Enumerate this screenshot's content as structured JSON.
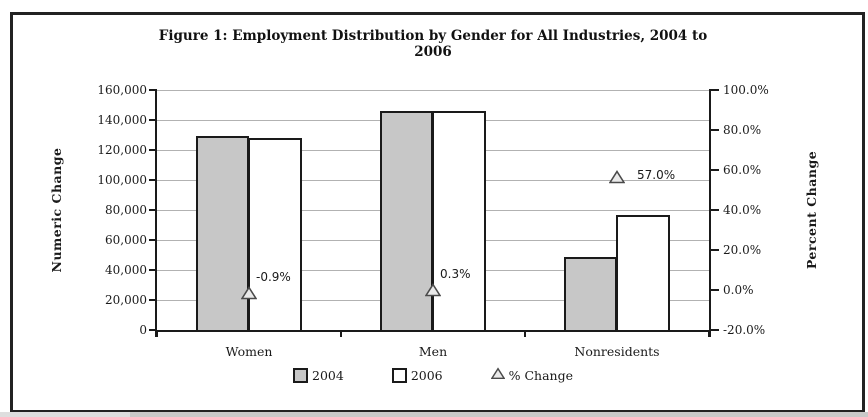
{
  "chart_data": {
    "type": "bar",
    "title": "Figure 1: Employment Distribution by Gender for All Industries, 2004 to 2006",
    "categories": [
      "Women",
      "Men",
      "Nonresidents"
    ],
    "series": [
      {
        "name": "2004",
        "axis": "left",
        "values": [
          129400,
          145700,
          49000
        ]
      },
      {
        "name": "2006",
        "axis": "left",
        "values": [
          128200,
          146100,
          76900
        ]
      }
    ],
    "markers": {
      "name": "% Change",
      "axis": "right",
      "values": [
        -0.9,
        0.3,
        57.0
      ],
      "labels": [
        "-0.9%",
        "0.3%",
        "57.0%"
      ]
    },
    "left_axis": {
      "label": "Numeric Change",
      "min": 0,
      "max": 160000,
      "step": 20000,
      "tick_labels_bottom_to_top": [
        "0",
        "20,000",
        "40,000",
        "60,000",
        "80,000",
        "100,000",
        "120,000",
        "140,000",
        "160,000"
      ]
    },
    "right_axis": {
      "label": "Percent Change",
      "min": -20,
      "max": 100,
      "step": 20,
      "tick_labels_bottom_to_top": [
        "-20.0%",
        "0.0%",
        "20.0%",
        "40.0%",
        "60.0%",
        "80.0%",
        "100.0%"
      ]
    },
    "legend": [
      {
        "label": "2004",
        "marker": "square-gray"
      },
      {
        "label": "2006",
        "marker": "square-white"
      },
      {
        "label": "% Change",
        "marker": "triangle"
      }
    ],
    "grid": "horizontal",
    "legend_position": "bottom",
    "colors": {
      "bar_2004_fill": "#c7c7c7",
      "bar_2006_fill": "#ffffff",
      "bar_border": "#1a1a1a",
      "gridline": "#b2b2b2",
      "marker_fill": "#eaeaea",
      "marker_stroke": "#4a4a4a"
    }
  }
}
